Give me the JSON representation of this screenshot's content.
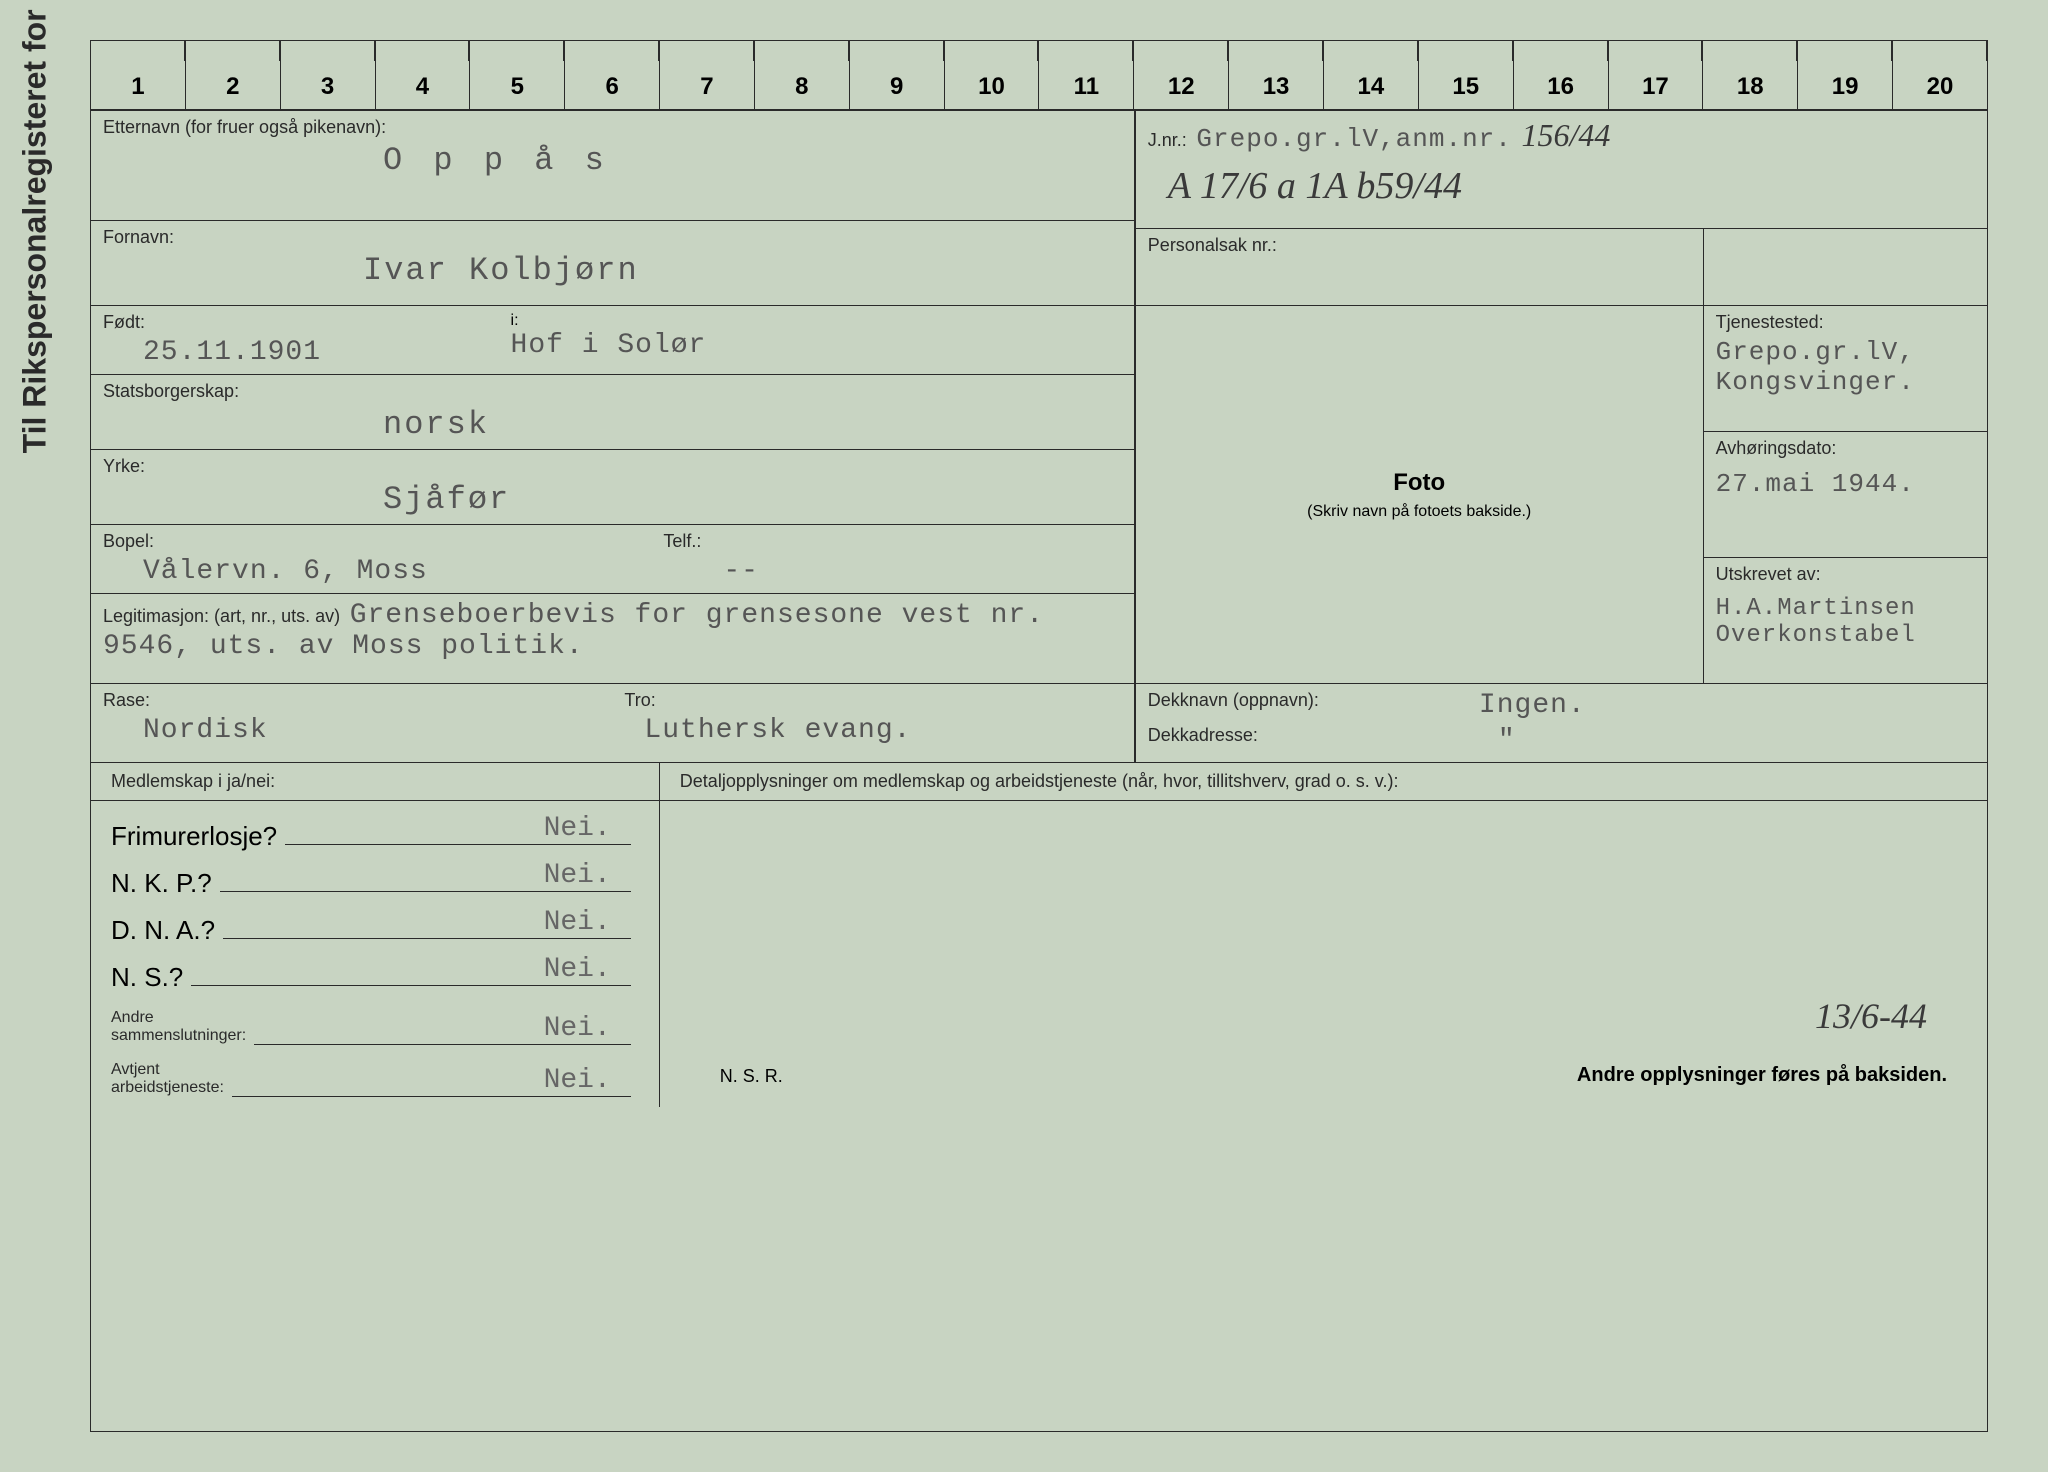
{
  "vertical_title": "Til Rikspersonalregisteret for anmeldte.",
  "ruler_numbers": [
    "1",
    "2",
    "3",
    "4",
    "5",
    "6",
    "7",
    "8",
    "9",
    "10",
    "11",
    "12",
    "13",
    "14",
    "15",
    "16",
    "17",
    "18",
    "19",
    "20"
  ],
  "etternavn": {
    "label": "Etternavn (for fruer også pikenavn):",
    "value": "O p p å s"
  },
  "fornavn": {
    "label": "Fornavn:",
    "value": "Ivar Kolbjørn"
  },
  "fodt": {
    "label": "Født:",
    "i_label": "i:",
    "date": "25.11.1901",
    "place": "Hof i Solør"
  },
  "statsborgerskap": {
    "label": "Statsborgerskap:",
    "value": "norsk"
  },
  "yrke": {
    "label": "Yrke:",
    "value": "Sjåfør"
  },
  "bopel": {
    "label": "Bopel:",
    "telf_label": "Telf.:",
    "value": "Vålervn. 6, Moss",
    "telf_value": "--"
  },
  "legitimasjon": {
    "label": "Legitimasjon: (art, nr., uts. av)",
    "value": "Grenseboerbevis for grensesone vest nr. 9546, uts. av Moss politik."
  },
  "rase": {
    "label": "Rase:",
    "value": "Nordisk"
  },
  "tro": {
    "label": "Tro:",
    "value": "Luthersk evang."
  },
  "jnr": {
    "label": "J.nr.:",
    "text": "Grepo.gr.lV,anm.nr.",
    "handwritten1": "156/44",
    "handwritten2": "A 17/6 a 1A b59/44"
  },
  "personalsak": {
    "label": "Personalsak nr.:"
  },
  "foto": {
    "label": "Foto",
    "subtitle": "(Skriv navn på fotoets bakside.)"
  },
  "tjenestested": {
    "label": "Tjenestested:",
    "value": "Grepo.gr.lV, Kongsvinger."
  },
  "avhoringsdato": {
    "label": "Avhøringsdato:",
    "value": "27.mai 1944."
  },
  "utskrevet": {
    "label": "Utskrevet av:",
    "value": "H.A.Martinsen Overkonstabel"
  },
  "dekknavn": {
    "label": "Dekknavn (oppnavn):",
    "value": "Ingen.",
    "quote": "\"",
    "dekkadresse_label": "Dekkadresse:"
  },
  "membership": {
    "header_left": "Medlemskap i ja/nei:",
    "header_right": "Detaljopplysninger om medlemskap og arbeidstjeneste (når, hvor, tillitshverv, grad o. s. v.):",
    "frimurerlosje": {
      "label": "Frimurerlosje?",
      "value": "Nei."
    },
    "nkp": {
      "label": "N. K. P.?",
      "value": "Nei."
    },
    "dna": {
      "label": "D. N. A.?",
      "value": "Nei."
    },
    "ns": {
      "label": "N. S.?",
      "value": "Nei."
    },
    "andre": {
      "label": "Andre",
      "sublabel": "sammenslutninger:",
      "value": "Nei."
    },
    "avtjent": {
      "label": "Avtjent",
      "sublabel": "arbeidstjeneste:",
      "value": "Nei."
    }
  },
  "nsr": "N. S. R.",
  "footer_note": "Andre opplysninger føres på baksiden.",
  "handwritten_date": "13/6-44"
}
